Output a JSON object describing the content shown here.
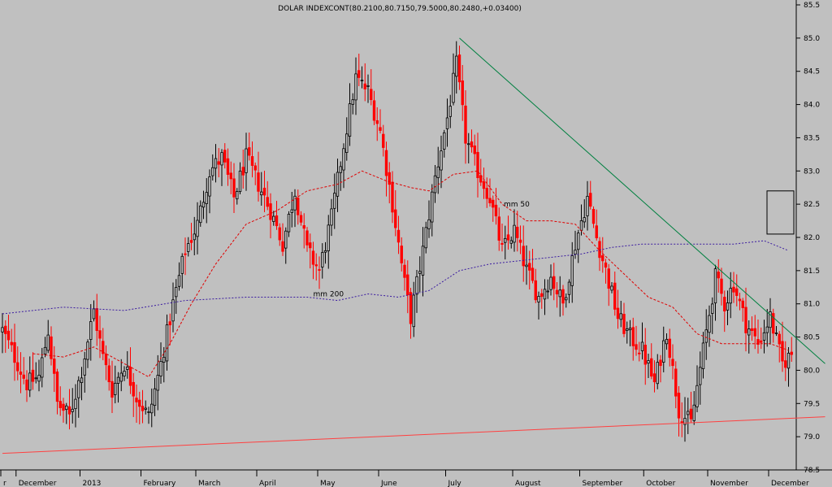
{
  "chart_data": {
    "type": "candlestick",
    "title": "DOLAR INDEXCONT(80.2100,80.7150,79.5000,80.2480,+0.03400)",
    "ylim": [
      78.5,
      85.5
    ],
    "yticks": [
      78.5,
      79.0,
      79.5,
      80.0,
      80.5,
      81.0,
      81.5,
      82.0,
      82.5,
      83.0,
      83.5,
      84.0,
      84.5,
      85.0,
      85.5
    ],
    "ytick_labels": [
      "78.5",
      "79.0",
      "79.5",
      "80.0",
      "80.5",
      "81.0",
      "81.5",
      "82.0",
      "82.5",
      "83.0",
      "83.5",
      "84.0",
      "84.5",
      "85.0",
      "85.5"
    ],
    "xtick_labels": [
      "r",
      "December",
      "2013",
      "February",
      "March",
      "April",
      "May",
      "June",
      "July",
      "August",
      "September",
      "October",
      "November",
      "December"
    ],
    "grid": false,
    "colors": {
      "background": "#c0c0c0",
      "up": "#000000",
      "down": "#ff0000",
      "mm50": "#e00000",
      "mm200": "#3a1aa0",
      "resistance": "#008040",
      "support": "#ff4040"
    },
    "annotations": [
      {
        "text": "mm 50",
        "color": "#e00000"
      },
      {
        "text": "mm 200",
        "color": "#3a1aa0"
      }
    ],
    "anchors": [
      [
        0,
        80.6
      ],
      [
        5,
        80.1
      ],
      [
        8,
        79.8
      ],
      [
        12,
        79.9
      ],
      [
        15,
        80.6
      ],
      [
        18,
        79.5
      ],
      [
        22,
        79.3
      ],
      [
        26,
        80.0
      ],
      [
        30,
        80.9
      ],
      [
        33,
        80.2
      ],
      [
        36,
        79.7
      ],
      [
        40,
        80.1
      ],
      [
        44,
        79.6
      ],
      [
        48,
        79.3
      ],
      [
        52,
        80.1
      ],
      [
        56,
        81.0
      ],
      [
        60,
        81.8
      ],
      [
        64,
        82.2
      ],
      [
        68,
        83.0
      ],
      [
        72,
        83.2
      ],
      [
        76,
        82.6
      ],
      [
        80,
        83.2
      ],
      [
        84,
        82.8
      ],
      [
        88,
        82.4
      ],
      [
        92,
        81.9
      ],
      [
        96,
        82.7
      ],
      [
        100,
        81.8
      ],
      [
        104,
        81.5
      ],
      [
        108,
        82.3
      ],
      [
        112,
        83.4
      ],
      [
        116,
        84.4
      ],
      [
        120,
        84.2
      ],
      [
        124,
        83.6
      ],
      [
        128,
        82.5
      ],
      [
        132,
        81.3
      ],
      [
        134,
        80.8
      ],
      [
        138,
        81.8
      ],
      [
        142,
        82.9
      ],
      [
        146,
        83.8
      ],
      [
        149,
        84.6
      ],
      [
        152,
        83.5
      ],
      [
        156,
        83.0
      ],
      [
        160,
        82.6
      ],
      [
        164,
        81.8
      ],
      [
        168,
        82.1
      ],
      [
        172,
        81.5
      ],
      [
        176,
        81.1
      ],
      [
        180,
        81.4
      ],
      [
        184,
        81.0
      ],
      [
        188,
        81.9
      ],
      [
        192,
        82.6
      ],
      [
        195,
        82.0
      ],
      [
        198,
        81.5
      ],
      [
        202,
        80.8
      ],
      [
        206,
        80.5
      ],
      [
        210,
        80.3
      ],
      [
        214,
        79.8
      ],
      [
        218,
        80.6
      ],
      [
        222,
        79.4
      ],
      [
        226,
        79.2
      ],
      [
        230,
        80.3
      ],
      [
        234,
        81.4
      ],
      [
        237,
        81.0
      ],
      [
        240,
        81.3
      ],
      [
        244,
        80.7
      ],
      [
        248,
        80.4
      ],
      [
        252,
        80.8
      ],
      [
        256,
        80.1
      ],
      [
        259,
        80.25
      ]
    ],
    "mm50": [
      [
        10,
        80.25
      ],
      [
        20,
        80.2
      ],
      [
        30,
        80.35
      ],
      [
        40,
        80.1
      ],
      [
        48,
        79.9
      ],
      [
        55,
        80.4
      ],
      [
        62,
        81.0
      ],
      [
        70,
        81.6
      ],
      [
        80,
        82.2
      ],
      [
        90,
        82.4
      ],
      [
        100,
        82.7
      ],
      [
        110,
        82.8
      ],
      [
        118,
        83.0
      ],
      [
        126,
        82.85
      ],
      [
        134,
        82.75
      ],
      [
        140,
        82.7
      ],
      [
        148,
        82.95
      ],
      [
        156,
        83.0
      ],
      [
        164,
        82.5
      ],
      [
        172,
        82.25
      ],
      [
        180,
        82.25
      ],
      [
        188,
        82.2
      ],
      [
        196,
        81.8
      ],
      [
        204,
        81.45
      ],
      [
        212,
        81.1
      ],
      [
        220,
        80.95
      ],
      [
        228,
        80.55
      ],
      [
        236,
        80.4
      ],
      [
        244,
        80.4
      ],
      [
        252,
        80.4
      ],
      [
        258,
        80.3
      ]
    ],
    "mm200": [
      [
        0,
        80.85
      ],
      [
        20,
        80.95
      ],
      [
        40,
        80.9
      ],
      [
        60,
        81.05
      ],
      [
        80,
        81.1
      ],
      [
        100,
        81.1
      ],
      [
        110,
        81.05
      ],
      [
        120,
        81.15
      ],
      [
        130,
        81.1
      ],
      [
        140,
        81.2
      ],
      [
        150,
        81.5
      ],
      [
        160,
        81.6
      ],
      [
        170,
        81.65
      ],
      [
        180,
        81.7
      ],
      [
        190,
        81.75
      ],
      [
        200,
        81.85
      ],
      [
        210,
        81.9
      ],
      [
        220,
        81.9
      ],
      [
        230,
        81.9
      ],
      [
        240,
        81.9
      ],
      [
        250,
        81.95
      ],
      [
        258,
        81.8
      ]
    ],
    "resistance_line": [
      [
        150,
        85.0
      ],
      [
        270,
        80.1
      ]
    ],
    "support_line": [
      [
        0,
        78.75
      ],
      [
        270,
        79.3
      ]
    ]
  }
}
